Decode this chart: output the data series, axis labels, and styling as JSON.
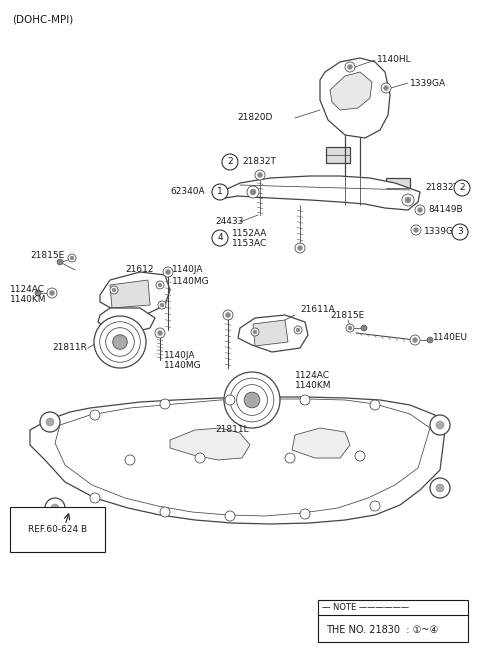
{
  "title": "(DOHC-MPI)",
  "bg": "#ffffff",
  "dark": "#1a1a1a",
  "gray": "#444444",
  "note_text1": "— NOTE ———————————",
  "note_text2": "THE NO. 21830  : ①~④"
}
